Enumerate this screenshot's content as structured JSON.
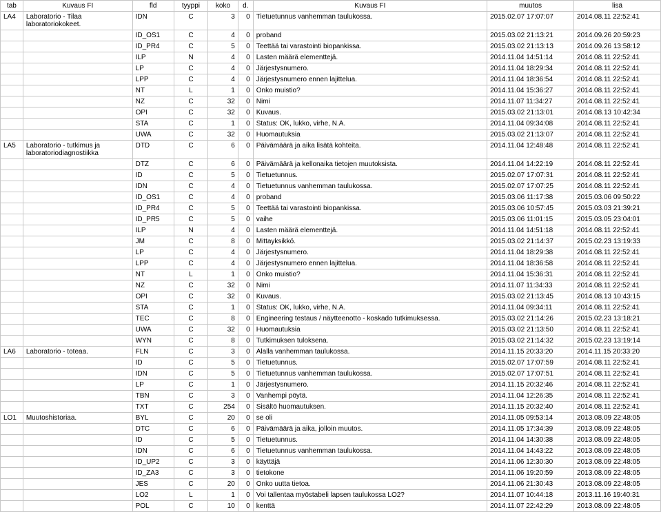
{
  "columns": [
    "tab",
    "Kuvaus FI",
    "fld",
    "tyyppi",
    "koko",
    "d.",
    "Kuvaus FI",
    "muutos",
    "lisä"
  ],
  "rows": [
    {
      "tab": "LA4",
      "kuv1": "Laboratorio - Tilaa laboratoriokokeet.",
      "fld": "IDN",
      "tyyppi": "C",
      "koko": "3",
      "d": "0",
      "kuv2": "Tietuetunnus vanhemman taulukossa.",
      "muutos": "2015.02.07 17:07:07",
      "lisa": "2014.08.11 22:52:41",
      "merge": true
    },
    {
      "tab": "",
      "kuv1": "",
      "fld": "ID_OS1",
      "tyyppi": "C",
      "koko": "4",
      "d": "0",
      "kuv2": "proband",
      "muutos": "2015.03.02 21:13:21",
      "lisa": "2014.09.26 20:59:23"
    },
    {
      "tab": "",
      "kuv1": "",
      "fld": "ID_PR4",
      "tyyppi": "C",
      "koko": "5",
      "d": "0",
      "kuv2": "Teettää tai varastointi biopankissa.",
      "muutos": "2015.03.02 21:13:13",
      "lisa": "2014.09.26 13:58:12"
    },
    {
      "tab": "",
      "kuv1": "",
      "fld": "ILP",
      "tyyppi": "N",
      "koko": "4",
      "d": "0",
      "kuv2": "Lasten määrä elementtejä.",
      "muutos": "2014.11.04 14:51:14",
      "lisa": "2014.08.11 22:52:41"
    },
    {
      "tab": "",
      "kuv1": "",
      "fld": "LP",
      "tyyppi": "C",
      "koko": "4",
      "d": "0",
      "kuv2": "Järjestysnumero.",
      "muutos": "2014.11.04 18:29:34",
      "lisa": "2014.08.11 22:52:41"
    },
    {
      "tab": "",
      "kuv1": "",
      "fld": "LPP",
      "tyyppi": "C",
      "koko": "4",
      "d": "0",
      "kuv2": "Järjestysnumero ennen lajittelua.",
      "muutos": "2014.11.04 18:36:54",
      "lisa": "2014.08.11 22:52:41"
    },
    {
      "tab": "",
      "kuv1": "",
      "fld": "NT",
      "tyyppi": "L",
      "koko": "1",
      "d": "0",
      "kuv2": "Onko muistio?",
      "muutos": "2014.11.04 15:36:27",
      "lisa": "2014.08.11 22:52:41"
    },
    {
      "tab": "",
      "kuv1": "",
      "fld": "NZ",
      "tyyppi": "C",
      "koko": "32",
      "d": "0",
      "kuv2": "Nimi",
      "muutos": "2014.11.07 11:34:27",
      "lisa": "2014.08.11 22:52:41"
    },
    {
      "tab": "",
      "kuv1": "",
      "fld": "OPI",
      "tyyppi": "C",
      "koko": "32",
      "d": "0",
      "kuv2": "Kuvaus.",
      "muutos": "2015.03.02 21:13:01",
      "lisa": "2014.08.13 10:42:34"
    },
    {
      "tab": "",
      "kuv1": "",
      "fld": "STA",
      "tyyppi": "C",
      "koko": "1",
      "d": "0",
      "kuv2": "Status: OK, lukko, virhe, N.A.",
      "muutos": "2014.11.04 09:34:08",
      "lisa": "2014.08.11 22:52:41"
    },
    {
      "tab": "",
      "kuv1": "",
      "fld": "UWA",
      "tyyppi": "C",
      "koko": "32",
      "d": "0",
      "kuv2": "Huomautuksia",
      "muutos": "2015.03.02 21:13:07",
      "lisa": "2014.08.11 22:52:41"
    },
    {
      "tab": "LA5",
      "kuv1": "Laboratorio - tutkimus ja laboratoriodiagnostiikka",
      "fld": "DTD",
      "tyyppi": "C",
      "koko": "6",
      "d": "0",
      "kuv2": "Päivämäärä ja aika lisätä kohteita.",
      "muutos": "2014.11.04 12:48:48",
      "lisa": "2014.08.11 22:52:41",
      "merge": true
    },
    {
      "tab": "",
      "kuv1": "",
      "fld": "DTZ",
      "tyyppi": "C",
      "koko": "6",
      "d": "0",
      "kuv2": "Päivämäärä ja kellonaika tietojen muutoksista.",
      "muutos": "2014.11.04 14:22:19",
      "lisa": "2014.08.11 22:52:41"
    },
    {
      "tab": "",
      "kuv1": "",
      "fld": "ID",
      "tyyppi": "C",
      "koko": "5",
      "d": "0",
      "kuv2": "Tietuetunnus.",
      "muutos": "2015.02.07 17:07:31",
      "lisa": "2014.08.11 22:52:41"
    },
    {
      "tab": "",
      "kuv1": "",
      "fld": "IDN",
      "tyyppi": "C",
      "koko": "4",
      "d": "0",
      "kuv2": "Tietuetunnus vanhemman taulukossa.",
      "muutos": "2015.02.07 17:07:25",
      "lisa": "2014.08.11 22:52:41"
    },
    {
      "tab": "",
      "kuv1": "",
      "fld": "ID_OS1",
      "tyyppi": "C",
      "koko": "4",
      "d": "0",
      "kuv2": "proband",
      "muutos": "2015.03.06 11:17:38",
      "lisa": "2015.03.06 09:50:22"
    },
    {
      "tab": "",
      "kuv1": "",
      "fld": "ID_PR4",
      "tyyppi": "C",
      "koko": "5",
      "d": "0",
      "kuv2": "Teettää tai varastointi biopankissa.",
      "muutos": "2015.03.06 10:57:45",
      "lisa": "2015.03.03 21:39:21"
    },
    {
      "tab": "",
      "kuv1": "",
      "fld": "ID_PR5",
      "tyyppi": "C",
      "koko": "5",
      "d": "0",
      "kuv2": "vaihe",
      "muutos": "2015.03.06 11:01:15",
      "lisa": "2015.03.05 23:04:01"
    },
    {
      "tab": "",
      "kuv1": "",
      "fld": "ILP",
      "tyyppi": "N",
      "koko": "4",
      "d": "0",
      "kuv2": "Lasten määrä elementtejä.",
      "muutos": "2014.11.04 14:51:18",
      "lisa": "2014.08.11 22:52:41"
    },
    {
      "tab": "",
      "kuv1": "",
      "fld": "JM",
      "tyyppi": "C",
      "koko": "8",
      "d": "0",
      "kuv2": "Mittayksikkö.",
      "muutos": "2015.03.02 21:14:37",
      "lisa": "2015.02.23 13:19:33"
    },
    {
      "tab": "",
      "kuv1": "",
      "fld": "LP",
      "tyyppi": "C",
      "koko": "4",
      "d": "0",
      "kuv2": "Järjestysnumero.",
      "muutos": "2014.11.04 18:29:38",
      "lisa": "2014.08.11 22:52:41"
    },
    {
      "tab": "",
      "kuv1": "",
      "fld": "LPP",
      "tyyppi": "C",
      "koko": "4",
      "d": "0",
      "kuv2": "Järjestysnumero ennen lajittelua.",
      "muutos": "2014.11.04 18:36:58",
      "lisa": "2014.08.11 22:52:41"
    },
    {
      "tab": "",
      "kuv1": "",
      "fld": "NT",
      "tyyppi": "L",
      "koko": "1",
      "d": "0",
      "kuv2": "Onko muistio?",
      "muutos": "2014.11.04 15:36:31",
      "lisa": "2014.08.11 22:52:41"
    },
    {
      "tab": "",
      "kuv1": "",
      "fld": "NZ",
      "tyyppi": "C",
      "koko": "32",
      "d": "0",
      "kuv2": "Nimi",
      "muutos": "2014.11.07 11:34:33",
      "lisa": "2014.08.11 22:52:41"
    },
    {
      "tab": "",
      "kuv1": "",
      "fld": "OPI",
      "tyyppi": "C",
      "koko": "32",
      "d": "0",
      "kuv2": "Kuvaus.",
      "muutos": "2015.03.02 21:13:45",
      "lisa": "2014.08.13 10:43:15"
    },
    {
      "tab": "",
      "kuv1": "",
      "fld": "STA",
      "tyyppi": "C",
      "koko": "1",
      "d": "0",
      "kuv2": "Status: OK, lukko, virhe, N.A.",
      "muutos": "2014.11.04 09:34:11",
      "lisa": "2014.08.11 22:52:41"
    },
    {
      "tab": "",
      "kuv1": "",
      "fld": "TEC",
      "tyyppi": "C",
      "koko": "8",
      "d": "0",
      "kuv2": "Engineering testaus / näytteenotto - koskado tutkimuksessa.",
      "muutos": "2015.03.02 21:14:26",
      "lisa": "2015.02.23 13:18:21",
      "wrap": true
    },
    {
      "tab": "",
      "kuv1": "",
      "fld": "UWA",
      "tyyppi": "C",
      "koko": "32",
      "d": "0",
      "kuv2": "Huomautuksia",
      "muutos": "2015.03.02 21:13:50",
      "lisa": "2014.08.11 22:52:41"
    },
    {
      "tab": "",
      "kuv1": "",
      "fld": "WYN",
      "tyyppi": "C",
      "koko": "8",
      "d": "0",
      "kuv2": "Tutkimuksen tuloksena.",
      "muutos": "2015.03.02 21:14:32",
      "lisa": "2015.02.23 13:19:14"
    },
    {
      "tab": "LA6",
      "kuv1": "Laboratorio - toteaa.",
      "fld": "FLN",
      "tyyppi": "C",
      "koko": "3",
      "d": "0",
      "kuv2": "Alalla vanhemman taulukossa.",
      "muutos": "2014.11.15 20:33:20",
      "lisa": "2014.11.15 20:33:20"
    },
    {
      "tab": "",
      "kuv1": "",
      "fld": "ID",
      "tyyppi": "C",
      "koko": "5",
      "d": "0",
      "kuv2": "Tietuetunnus.",
      "muutos": "2015.02.07 17:07:59",
      "lisa": "2014.08.11 22:52:41"
    },
    {
      "tab": "",
      "kuv1": "",
      "fld": "IDN",
      "tyyppi": "C",
      "koko": "5",
      "d": "0",
      "kuv2": "Tietuetunnus vanhemman taulukossa.",
      "muutos": "2015.02.07 17:07:51",
      "lisa": "2014.08.11 22:52:41"
    },
    {
      "tab": "",
      "kuv1": "",
      "fld": "LP",
      "tyyppi": "C",
      "koko": "1",
      "d": "0",
      "kuv2": "Järjestysnumero.",
      "muutos": "2014.11.15 20:32:46",
      "lisa": "2014.08.11 22:52:41"
    },
    {
      "tab": "",
      "kuv1": "",
      "fld": "TBN",
      "tyyppi": "C",
      "koko": "3",
      "d": "0",
      "kuv2": "Vanhempi pöytä.",
      "muutos": "2014.11.04 12:26:35",
      "lisa": "2014.08.11 22:52:41"
    },
    {
      "tab": "",
      "kuv1": "",
      "fld": "TXT",
      "tyyppi": "C",
      "koko": "254",
      "d": "0",
      "kuv2": "Sisältö huomautuksen.",
      "muutos": "2014.11.15 20:32:40",
      "lisa": "2014.08.11 22:52:41"
    },
    {
      "tab": "LO1",
      "kuv1": "Muutoshistoriaa.",
      "fld": "BYL",
      "tyyppi": "C",
      "koko": "20",
      "d": "0",
      "kuv2": "se oli",
      "muutos": "2014.11.05 09:53:14",
      "lisa": "2013.08.09 22:48:05"
    },
    {
      "tab": "",
      "kuv1": "",
      "fld": "DTC",
      "tyyppi": "C",
      "koko": "6",
      "d": "0",
      "kuv2": "Päivämäärä ja aika, jolloin muutos.",
      "muutos": "2014.11.05 17:34:39",
      "lisa": "2013.08.09 22:48:05"
    },
    {
      "tab": "",
      "kuv1": "",
      "fld": "ID",
      "tyyppi": "C",
      "koko": "5",
      "d": "0",
      "kuv2": "Tietuetunnus.",
      "muutos": "2014.11.04 14:30:38",
      "lisa": "2013.08.09 22:48:05"
    },
    {
      "tab": "",
      "kuv1": "",
      "fld": "IDN",
      "tyyppi": "C",
      "koko": "6",
      "d": "0",
      "kuv2": "Tietuetunnus vanhemman taulukossa.",
      "muutos": "2014.11.04 14:43:22",
      "lisa": "2013.08.09 22:48:05"
    },
    {
      "tab": "",
      "kuv1": "",
      "fld": "ID_UP2",
      "tyyppi": "C",
      "koko": "3",
      "d": "0",
      "kuv2": "käyttäjä",
      "muutos": "2014.11.06 12:30:30",
      "lisa": "2013.08.09 22:48:05"
    },
    {
      "tab": "",
      "kuv1": "",
      "fld": "ID_ZA3",
      "tyyppi": "C",
      "koko": "3",
      "d": "0",
      "kuv2": "tietokone",
      "muutos": "2014.11.06 19:20:59",
      "lisa": "2013.08.09 22:48:05"
    },
    {
      "tab": "",
      "kuv1": "",
      "fld": "JES",
      "tyyppi": "C",
      "koko": "20",
      "d": "0",
      "kuv2": "Onko uutta tietoa.",
      "muutos": "2014.11.06 21:30:43",
      "lisa": "2013.08.09 22:48:05"
    },
    {
      "tab": "",
      "kuv1": "",
      "fld": "LO2",
      "tyyppi": "L",
      "koko": "1",
      "d": "0",
      "kuv2": "Voi tallentaa myöstabeli lapsen taulukossa LO2?",
      "muutos": "2014.11.07 10:44:18",
      "lisa": "2013.11.16 19:40:31"
    },
    {
      "tab": "",
      "kuv1": "",
      "fld": "POL",
      "tyyppi": "C",
      "koko": "10",
      "d": "0",
      "kuv2": "kenttä",
      "muutos": "2014.11.07 22:42:29",
      "lisa": "2013.08.09 22:48:05"
    }
  ]
}
